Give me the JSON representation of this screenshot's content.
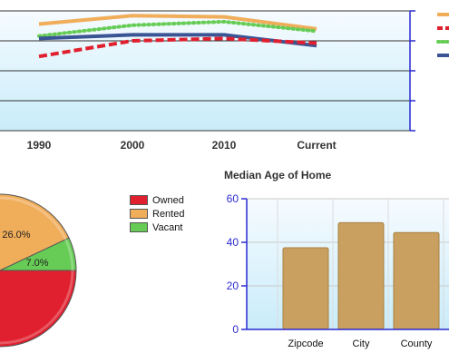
{
  "colors": {
    "owned": "#e0202e",
    "rented": "#f0ad5a",
    "vacant": "#66cc55",
    "bar": "#c9a060",
    "axis": "#2a2ad0",
    "plot_bg_top": "#f6fbff",
    "plot_bg_bottom": "#c9ecfa"
  },
  "chart_data": [
    {
      "type": "line",
      "categories": [
        "1990",
        "2000",
        "2010",
        "Current"
      ],
      "series": [
        {
          "style": "solid",
          "color": "#f0ad5a",
          "values": [
            8.9,
            9.6,
            9.5,
            8.5
          ]
        },
        {
          "style": "dotted",
          "color": "#66cc55",
          "values": [
            7.9,
            8.8,
            9.1,
            8.3
          ]
        },
        {
          "style": "solid",
          "color": "#3a5494",
          "values": [
            7.7,
            8.0,
            8.0,
            7.1
          ]
        },
        {
          "style": "dashed",
          "color": "#e0202e",
          "values": [
            6.2,
            7.5,
            7.7,
            7.3
          ]
        }
      ],
      "ylim": [
        0,
        10
      ],
      "grid": true,
      "legend": "right"
    },
    {
      "type": "pie",
      "labels": [
        "Owned",
        "Rented",
        "Vacant"
      ],
      "values": [
        67.0,
        26.0,
        7.0
      ],
      "value_labels": [
        "",
        "26.0%",
        "7.0%"
      ],
      "legend": "right"
    },
    {
      "type": "bar",
      "title": "Median Age of Home",
      "categories": [
        "Zipcode",
        "City",
        "County"
      ],
      "values": [
        37.5,
        49,
        44.5
      ],
      "ylim": [
        0,
        60
      ],
      "yticks": [
        "0",
        "20",
        "40",
        "60"
      ],
      "grid": true
    }
  ]
}
